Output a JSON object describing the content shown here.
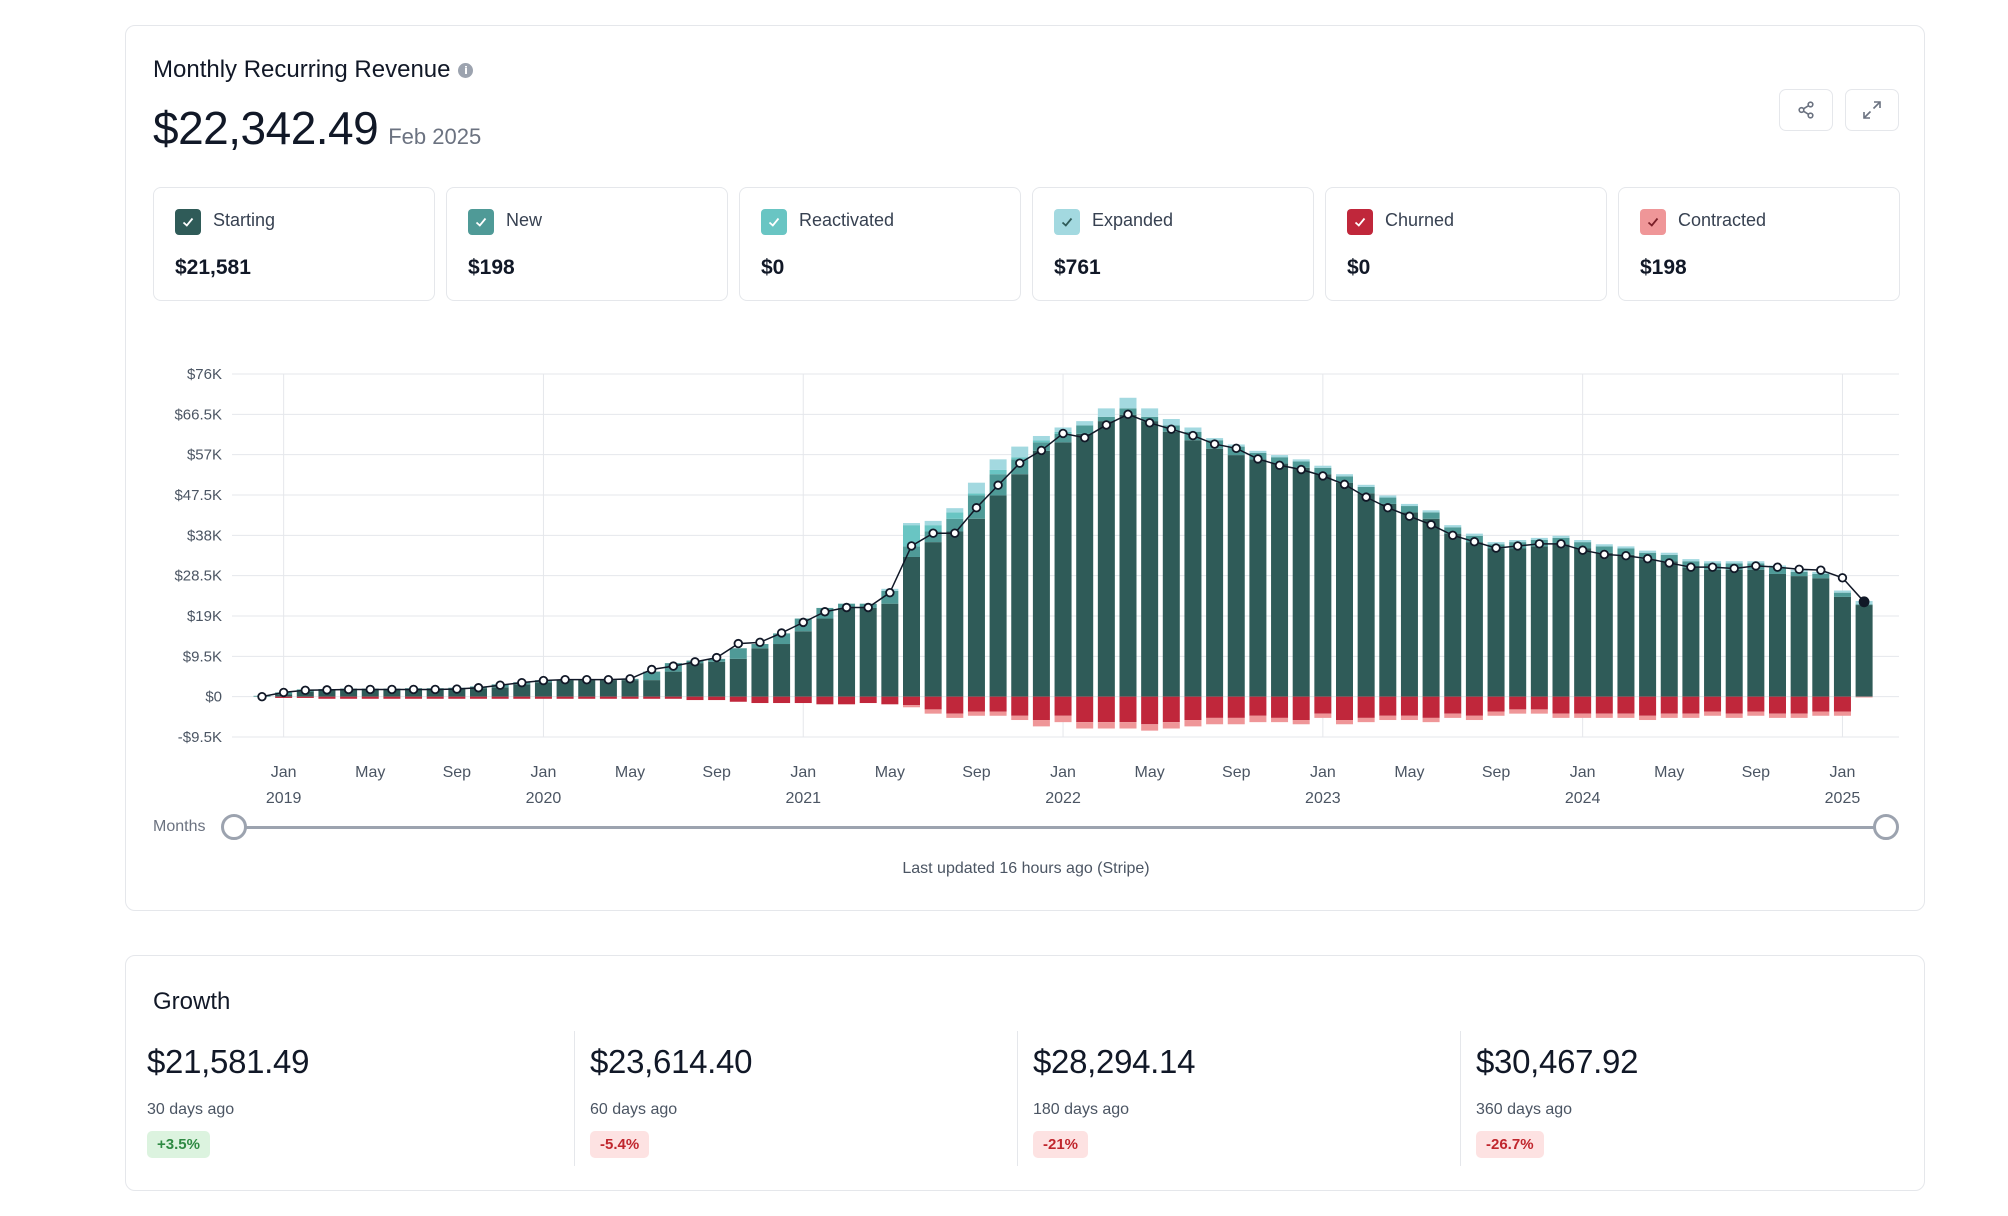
{
  "mrr": {
    "title": "Monthly Recurring Revenue",
    "info_icon": "info-icon",
    "amount": "$22,342.49",
    "period": "Feb 2025",
    "metrics": [
      {
        "label": "Starting",
        "value": "$21,581",
        "color": "#2f5b58"
      },
      {
        "label": "New",
        "value": "$198",
        "color": "#4f9a97"
      },
      {
        "label": "Reactivated",
        "value": "$0",
        "color": "#69c5c3"
      },
      {
        "label": "Expanded",
        "value": "$761",
        "color": "#a3d9e0"
      },
      {
        "label": "Churned",
        "value": "$0",
        "color": "#c0273b"
      },
      {
        "label": "Contracted",
        "value": "$198",
        "color": "#ef9698"
      }
    ],
    "slider_label": "Months",
    "last_updated": "Last updated 16 hours ago (Stripe)"
  },
  "growth": {
    "title": "Growth",
    "items": [
      {
        "amount": "$21,581.49",
        "period": "30 days ago",
        "change": "+3.5%",
        "direction": "up"
      },
      {
        "amount": "$23,614.40",
        "period": "60 days ago",
        "change": "-5.4%",
        "direction": "down"
      },
      {
        "amount": "$28,294.14",
        "period": "180 days ago",
        "change": "-21%",
        "direction": "down"
      },
      {
        "amount": "$30,467.92",
        "period": "360 days ago",
        "change": "-26.7%",
        "direction": "down"
      }
    ]
  },
  "chart_data": {
    "type": "bar",
    "ylim": [
      -9500,
      76000
    ],
    "y_ticks": [
      -9500,
      0,
      9500,
      19000,
      28500,
      38000,
      47500,
      57000,
      66500,
      76000
    ],
    "y_tick_labels": [
      "-$9.5K",
      "$0",
      "$9.5K",
      "$19K",
      "$28.5K",
      "$38K",
      "$47.5K",
      "$57K",
      "$66.5K",
      "$76K"
    ],
    "x_tick_labels": [
      {
        "month_index": 1,
        "label": "Jan",
        "year": "2019"
      },
      {
        "month_index": 5,
        "label": "May",
        "year": ""
      },
      {
        "month_index": 9,
        "label": "Sep",
        "year": ""
      },
      {
        "month_index": 13,
        "label": "Jan",
        "year": "2020"
      },
      {
        "month_index": 17,
        "label": "May",
        "year": ""
      },
      {
        "month_index": 21,
        "label": "Sep",
        "year": ""
      },
      {
        "month_index": 25,
        "label": "Jan",
        "year": "2021"
      },
      {
        "month_index": 29,
        "label": "May",
        "year": ""
      },
      {
        "month_index": 33,
        "label": "Sep",
        "year": ""
      },
      {
        "month_index": 37,
        "label": "Jan",
        "year": "2022"
      },
      {
        "month_index": 41,
        "label": "May",
        "year": ""
      },
      {
        "month_index": 45,
        "label": "Sep",
        "year": ""
      },
      {
        "month_index": 49,
        "label": "Jan",
        "year": "2023"
      },
      {
        "month_index": 53,
        "label": "May",
        "year": ""
      },
      {
        "month_index": 57,
        "label": "Sep",
        "year": ""
      },
      {
        "month_index": 61,
        "label": "Jan",
        "year": "2024"
      },
      {
        "month_index": 65,
        "label": "May",
        "year": ""
      },
      {
        "month_index": 69,
        "label": "Sep",
        "year": ""
      },
      {
        "month_index": 73,
        "label": "Jan",
        "year": "2025"
      }
    ],
    "months": 75,
    "series": [
      {
        "name": "Starting",
        "values": [
          0,
          500,
          1200,
          1600,
          1700,
          1800,
          1800,
          1900,
          1900,
          1900,
          2000,
          2200,
          2900,
          3400,
          3800,
          3900,
          3900,
          3900,
          3900,
          5900,
          7900,
          8200,
          8900,
          11400,
          12400,
          15400,
          18400,
          20900,
          20900,
          21900,
          32900,
          36400,
          38900,
          41900,
          47400,
          52400,
          57900,
          59900,
          61900,
          64900,
          66400,
          64900,
          62400,
          60400,
          58400,
          56900,
          55900,
          54900,
          53900,
          52400,
          50400,
          47900,
          45400,
          43400,
          41900,
          38400,
          36400,
          34900,
          34900,
          35400,
          35900,
          34900,
          33900,
          33400,
          32400,
          31900,
          30400,
          29900,
          29900,
          29900,
          28900,
          28400,
          27900,
          23500,
          21581
        ]
      },
      {
        "name": "New",
        "values": [
          200,
          500,
          500,
          200,
          200,
          100,
          100,
          100,
          100,
          200,
          400,
          700,
          500,
          500,
          200,
          200,
          200,
          300,
          2000,
          2000,
          600,
          700,
          2500,
          1000,
          2500,
          3000,
          2500,
          1000,
          1000,
          3000,
          2500,
          2500,
          3000,
          5500,
          5000,
          3500,
          2000,
          2000,
          2000,
          1000,
          1500,
          1000,
          1500,
          2000,
          2000,
          2000,
          1500,
          1500,
          1500,
          1500,
          1500,
          1500,
          1500,
          1500,
          1500,
          1500,
          1500,
          1000,
          1500,
          1500,
          1500,
          1500,
          1500,
          1500,
          1500,
          1500,
          1500,
          1500,
          1500,
          1500,
          1500,
          1000,
          1000,
          1000,
          198
        ]
      },
      {
        "name": "Reactivated",
        "values": [
          0,
          0,
          0,
          0,
          0,
          0,
          0,
          0,
          0,
          0,
          0,
          0,
          0,
          0,
          0,
          0,
          0,
          0,
          0,
          0,
          0,
          0,
          0,
          0,
          0,
          0,
          0,
          0,
          0,
          0,
          5000,
          1500,
          1500,
          500,
          1000,
          500,
          500,
          500,
          0,
          0,
          0,
          0,
          0,
          0,
          0,
          0,
          0,
          0,
          0,
          0,
          0,
          0,
          0,
          0,
          0,
          0,
          0,
          0,
          0,
          0,
          0,
          0,
          0,
          0,
          0,
          0,
          0,
          0,
          0,
          0,
          0,
          0,
          0,
          0,
          0
        ]
      },
      {
        "name": "Expanded",
        "values": [
          0,
          0,
          0,
          0,
          0,
          0,
          0,
          0,
          0,
          0,
          0,
          0,
          0,
          0,
          0,
          0,
          0,
          0,
          0,
          0,
          0,
          0,
          0,
          0,
          0,
          0,
          0,
          0,
          0,
          500,
          500,
          1000,
          1000,
          2500,
          2500,
          2500,
          1000,
          1000,
          1000,
          2000,
          2500,
          2000,
          1500,
          1000,
          500,
          500,
          500,
          500,
          500,
          500,
          500,
          500,
          500,
          500,
          500,
          500,
          500,
          500,
          500,
          500,
          500,
          500,
          500,
          500,
          500,
          500,
          500,
          500,
          500,
          500,
          500,
          500,
          500,
          500,
          761
        ]
      },
      {
        "name": "Churned",
        "values": [
          0,
          -300,
          -300,
          -500,
          -500,
          -500,
          -500,
          -500,
          -500,
          -500,
          -500,
          -500,
          -500,
          -500,
          -500,
          -500,
          -500,
          -500,
          -500,
          -500,
          -800,
          -800,
          -1200,
          -1500,
          -1500,
          -1500,
          -1800,
          -1800,
          -1500,
          -1800,
          -2000,
          -3000,
          -4000,
          -3500,
          -3500,
          -4500,
          -5500,
          -4500,
          -6000,
          -6000,
          -6000,
          -6500,
          -6000,
          -5500,
          -5000,
          -5000,
          -4500,
          -5000,
          -5500,
          -4000,
          -5500,
          -5000,
          -4500,
          -4500,
          -5000,
          -4000,
          -4500,
          -3500,
          -3000,
          -3000,
          -4000,
          -4000,
          -4000,
          -4000,
          -4500,
          -4000,
          -4000,
          -3500,
          -4000,
          -3500,
          -4000,
          -4000,
          -3500,
          -3500,
          0
        ]
      },
      {
        "name": "Contracted",
        "values": [
          0,
          0,
          0,
          0,
          0,
          0,
          0,
          0,
          0,
          0,
          0,
          0,
          0,
          0,
          0,
          0,
          0,
          0,
          0,
          0,
          0,
          0,
          0,
          0,
          0,
          0,
          0,
          0,
          0,
          0,
          -500,
          -1000,
          -1000,
          -1000,
          -1000,
          -1000,
          -1500,
          -1500,
          -1500,
          -1500,
          -1500,
          -1500,
          -1500,
          -1500,
          -1500,
          -1500,
          -1500,
          -1000,
          -1000,
          -1000,
          -1000,
          -1000,
          -1000,
          -1000,
          -1000,
          -1000,
          -1000,
          -1000,
          -1000,
          -1000,
          -1000,
          -1000,
          -1000,
          -1000,
          -1000,
          -1000,
          -1000,
          -1000,
          -1000,
          -1000,
          -1000,
          -1000,
          -1000,
          -1000,
          -198
        ]
      },
      {
        "name": "MRR",
        "values": [
          0,
          1000,
          1500,
          1600,
          1700,
          1700,
          1700,
          1700,
          1700,
          1800,
          2100,
          2700,
          3300,
          3800,
          4000,
          4000,
          4000,
          4200,
          6400,
          7200,
          8200,
          9200,
          12500,
          12800,
          15000,
          17500,
          20000,
          21000,
          21000,
          24500,
          35500,
          38500,
          38500,
          44500,
          49800,
          55000,
          58000,
          62000,
          61000,
          64000,
          66500,
          64500,
          63000,
          61500,
          59500,
          58500,
          56000,
          54500,
          53500,
          52000,
          50000,
          47000,
          44500,
          42500,
          40500,
          38000,
          36500,
          35000,
          35500,
          36000,
          36000,
          34500,
          33500,
          33200,
          32500,
          31500,
          30500,
          30500,
          30200,
          30800,
          30500,
          30000,
          29800,
          28000,
          22342
        ]
      }
    ]
  }
}
